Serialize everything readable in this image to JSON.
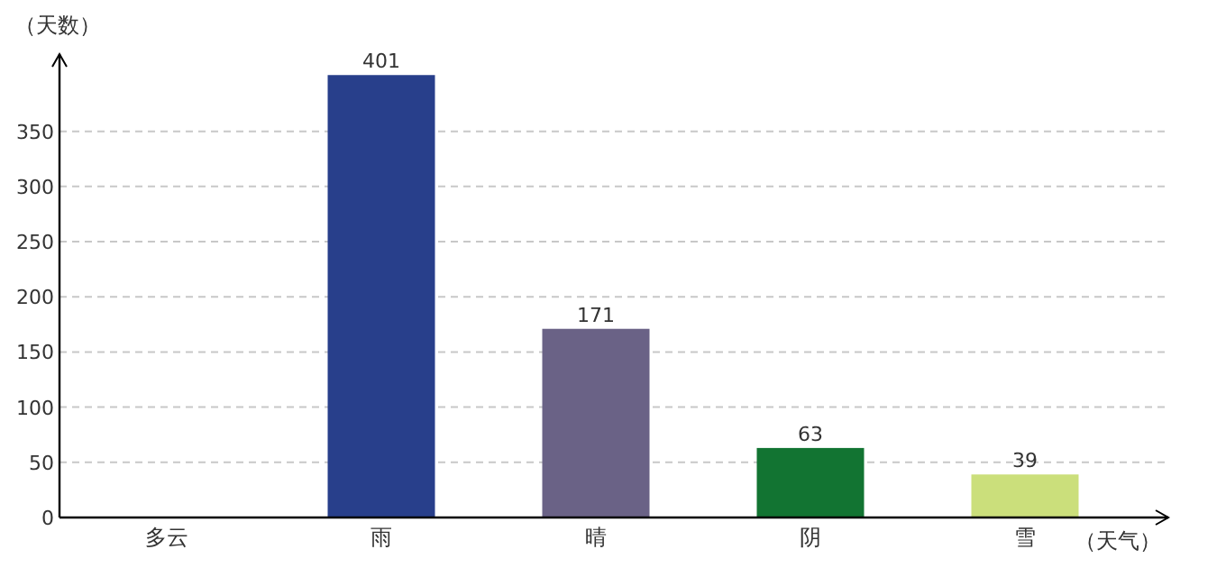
{
  "chart_data": {
    "type": "bar",
    "xlabel": "（天气）",
    "ylabel": "（天数）",
    "categories": [
      "多云",
      "雨",
      "晴",
      "阴",
      "雪"
    ],
    "values": [
      null,
      401,
      171,
      63,
      39
    ],
    "colors": [
      null,
      "#283f8b",
      "#6a6286",
      "#127432",
      "#cbdf7b"
    ],
    "ylim": [
      0,
      420
    ],
    "yticks": [
      0,
      50,
      100,
      150,
      200,
      250,
      300,
      350
    ],
    "grid": "y",
    "data_labels": true
  }
}
